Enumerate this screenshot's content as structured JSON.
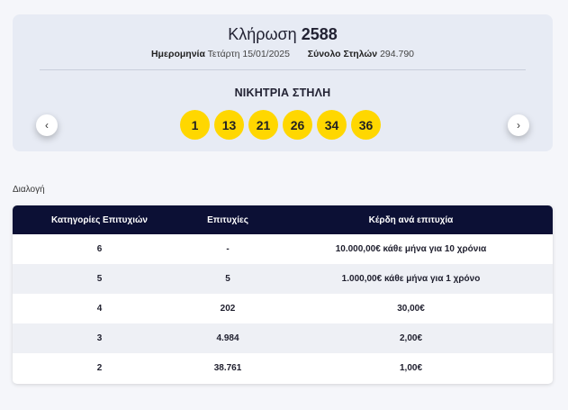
{
  "draw": {
    "title_prefix": "Κλήρωση",
    "number": "2588",
    "date_label": "Ημερομηνία",
    "date_value": "Τετάρτη 15/01/2025",
    "columns_label": "Σύνολο Στηλών",
    "columns_value": "294.790",
    "winning_label": "ΝΙΚΗΤΡΙΑ ΣΤΗΛΗ",
    "numbers": [
      "1",
      "13",
      "21",
      "26",
      "34",
      "36"
    ],
    "ball_color": "#ffd700"
  },
  "nav": {
    "prev_icon": "‹",
    "next_icon": "›"
  },
  "select_label": "Διαλογή",
  "table": {
    "headers": [
      "Κατηγορίες Επιτυχιών",
      "Επιτυχίες",
      "Κέρδη ανά επιτυχία"
    ],
    "header_color": "#0c1035",
    "rows": [
      [
        "6",
        "-",
        "10.000,00€ κάθε μήνα για 10 χρόνια"
      ],
      [
        "5",
        "5",
        "1.000,00€ κάθε μήνα για 1 χρόνο"
      ],
      [
        "4",
        "202",
        "30,00€"
      ],
      [
        "3",
        "4.984",
        "2,00€"
      ],
      [
        "2",
        "38.761",
        "1,00€"
      ]
    ]
  }
}
